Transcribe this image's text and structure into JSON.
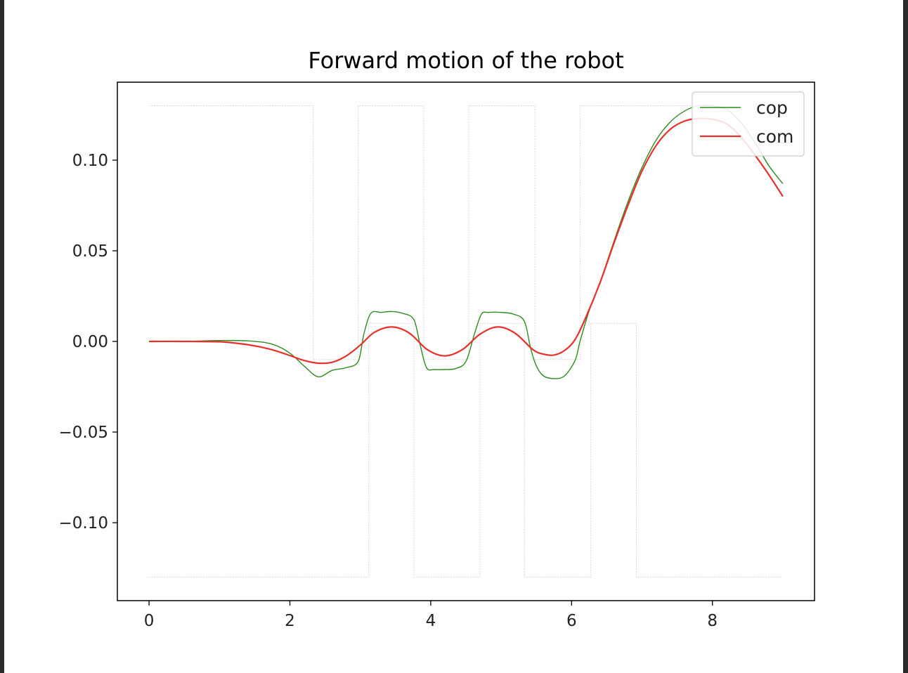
{
  "chart_data": {
    "type": "line",
    "title": "Forward motion of the robot",
    "xlabel": "",
    "ylabel": "",
    "xlim": [
      -0.45,
      9.45
    ],
    "ylim": [
      -0.143,
      0.143
    ],
    "x_ticks": [
      0,
      2,
      4,
      6,
      8
    ],
    "x_tick_labels": [
      "0",
      "2",
      "4",
      "6",
      "8"
    ],
    "y_ticks": [
      0.1,
      0.05,
      0.0,
      -0.05,
      -0.1
    ],
    "y_tick_labels": [
      "0.10",
      "0.05",
      "0.00",
      "−0.05",
      "−0.10"
    ],
    "grid": false,
    "legend_position": "upper right",
    "support_polygons": {
      "color": "#d9d9d9",
      "upper": [
        [
          0.0,
          0.13
        ],
        [
          2.33,
          0.13
        ],
        [
          2.33,
          -0.01
        ],
        [
          2.97,
          -0.01
        ],
        [
          2.97,
          0.13
        ],
        [
          3.9,
          0.13
        ],
        [
          3.9,
          -0.01
        ],
        [
          4.54,
          -0.01
        ],
        [
          4.54,
          0.13
        ],
        [
          5.48,
          0.13
        ],
        [
          5.48,
          -0.01
        ],
        [
          6.12,
          -0.01
        ],
        [
          6.12,
          0.13
        ],
        [
          9.0,
          0.13
        ]
      ],
      "lower": [
        [
          0.0,
          -0.13
        ],
        [
          3.12,
          -0.13
        ],
        [
          3.12,
          0.01
        ],
        [
          3.76,
          0.01
        ],
        [
          3.76,
          -0.13
        ],
        [
          4.7,
          -0.13
        ],
        [
          4.7,
          0.01
        ],
        [
          5.33,
          0.01
        ],
        [
          5.33,
          -0.13
        ],
        [
          6.27,
          -0.13
        ],
        [
          6.27,
          0.01
        ],
        [
          6.92,
          0.01
        ],
        [
          6.92,
          -0.13
        ],
        [
          9.0,
          -0.13
        ]
      ]
    },
    "series": [
      {
        "name": "cop",
        "color": "#2e8b22",
        "stroke_width": 1.4,
        "x": [
          0,
          0.5,
          1.0,
          1.4,
          1.75,
          2.0,
          2.2,
          2.4,
          2.6,
          2.8,
          2.97,
          3.05,
          3.15,
          3.3,
          3.45,
          3.6,
          3.76,
          3.85,
          3.94,
          4.05,
          4.2,
          4.35,
          4.5,
          4.62,
          4.72,
          4.82,
          5.0,
          5.18,
          5.33,
          5.42,
          5.5,
          5.6,
          5.75,
          5.9,
          6.05,
          6.12,
          6.25,
          6.4,
          6.6,
          6.8,
          7.0,
          7.2,
          7.4,
          7.6,
          7.8,
          8.0,
          8.2,
          8.4,
          8.6,
          8.8,
          9.0
        ],
        "y": [
          0,
          0,
          0.0005,
          0.0003,
          -0.0015,
          -0.0065,
          -0.0135,
          -0.0195,
          -0.016,
          -0.0145,
          -0.011,
          0.004,
          0.0155,
          0.016,
          0.0165,
          0.0155,
          0.012,
          -0.002,
          -0.0145,
          -0.0155,
          -0.0155,
          -0.015,
          -0.011,
          0.004,
          0.015,
          0.016,
          0.016,
          0.015,
          0.011,
          -0.004,
          -0.0135,
          -0.019,
          -0.0205,
          -0.019,
          -0.0105,
          0.0,
          0.017,
          0.032,
          0.055,
          0.077,
          0.096,
          0.111,
          0.121,
          0.127,
          0.13,
          0.13,
          0.128,
          0.121,
          0.11,
          0.097,
          0.087
        ]
      },
      {
        "name": "com",
        "color": "#e8302a",
        "stroke_width": 2.2,
        "x": [
          0,
          0.5,
          1.0,
          1.2,
          1.4,
          1.6,
          1.8,
          2.0,
          2.2,
          2.4,
          2.6,
          2.8,
          3.0,
          3.2,
          3.45,
          3.7,
          3.95,
          4.2,
          4.45,
          4.7,
          4.95,
          5.2,
          5.45,
          5.6,
          5.75,
          5.9,
          6.05,
          6.2,
          6.4,
          6.6,
          6.8,
          7.0,
          7.2,
          7.4,
          7.6,
          7.8,
          8.0,
          8.2,
          8.4,
          8.6,
          8.8,
          9.0
        ],
        "y": [
          0,
          0,
          -0.0002,
          -0.0008,
          -0.0018,
          -0.0032,
          -0.0052,
          -0.0078,
          -0.0105,
          -0.012,
          -0.0115,
          -0.008,
          -0.002,
          0.005,
          0.008,
          0.0045,
          -0.0045,
          -0.008,
          -0.0045,
          0.004,
          0.008,
          0.0045,
          -0.0045,
          -0.007,
          -0.0075,
          -0.005,
          0.001,
          0.013,
          0.032,
          0.054,
          0.075,
          0.094,
          0.108,
          0.117,
          0.1215,
          0.123,
          0.1225,
          0.12,
          0.113,
          0.103,
          0.092,
          0.08
        ]
      }
    ]
  }
}
